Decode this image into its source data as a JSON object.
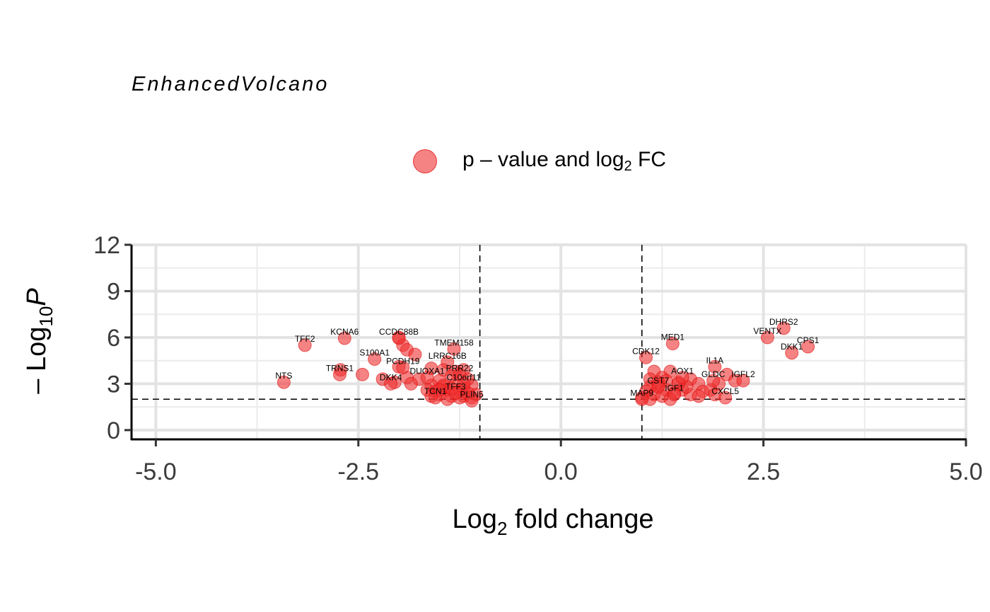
{
  "chart_data": {
    "type": "scatter",
    "subtitle": "EnhancedVolcano",
    "legend": {
      "label_prefix": "p – value and log",
      "label_sub": "2",
      "label_suffix": " FC",
      "color": "#ee3030",
      "position": "top"
    },
    "xlabel_main": "Log",
    "xlabel_sub": "2",
    "xlabel_rest": " fold change",
    "ylabel_prefix": "– Log",
    "ylabel_sub": "10",
    "ylabel_italic": "P",
    "xlim": [
      -5.3,
      5.0
    ],
    "ylim": [
      -0.6,
      12.0
    ],
    "xticks": [
      -5.0,
      -2.5,
      0.0,
      2.5,
      5.0
    ],
    "xtick_labels": [
      "-5.0",
      "-2.5",
      "0.0",
      "2.5",
      "5.0"
    ],
    "yticks": [
      0,
      3,
      6,
      9,
      12
    ],
    "ytick_labels": [
      "0",
      "3",
      "6",
      "9",
      "12"
    ],
    "fc_cutoff": 1.0,
    "p_cutoff_log": 2.0,
    "grid": true,
    "labeled_points": [
      {
        "gene": "TFF2",
        "x": -3.16,
        "y": 5.5
      },
      {
        "gene": "KCNA6",
        "x": -2.67,
        "y": 5.95
      },
      {
        "gene": "CCDC88B",
        "x": -2.0,
        "y": 5.95
      },
      {
        "gene": "TMEM158",
        "x": -1.32,
        "y": 5.25
      },
      {
        "gene": "S100A1",
        "x": -2.3,
        "y": 4.6
      },
      {
        "gene": "LRRC16B",
        "x": -1.4,
        "y": 4.4
      },
      {
        "gene": "PCDH19",
        "x": -1.95,
        "y": 4.05
      },
      {
        "gene": "TRNS1",
        "x": -2.73,
        "y": 3.6
      },
      {
        "gene": "PRR22",
        "x": -1.25,
        "y": 3.6
      },
      {
        "gene": "DUOXA1",
        "x": -1.65,
        "y": 3.4
      },
      {
        "gene": "DKK4",
        "x": -2.1,
        "y": 3.0
      },
      {
        "gene": "C10orf11",
        "x": -1.2,
        "y": 3.0
      },
      {
        "gene": "NTS",
        "x": -3.42,
        "y": 3.1
      },
      {
        "gene": "TFF3",
        "x": -1.3,
        "y": 2.4
      },
      {
        "gene": "TCN1",
        "x": -1.55,
        "y": 2.1
      },
      {
        "gene": "PLIN5",
        "x": -1.1,
        "y": 1.9
      },
      {
        "gene": "MED1",
        "x": 1.38,
        "y": 5.6
      },
      {
        "gene": "CDK12",
        "x": 1.05,
        "y": 4.7
      },
      {
        "gene": "IL1A",
        "x": 1.9,
        "y": 4.1
      },
      {
        "gene": "AOX1",
        "x": 1.5,
        "y": 3.4
      },
      {
        "gene": "GLDC",
        "x": 1.88,
        "y": 3.2
      },
      {
        "gene": "IGFL2",
        "x": 2.25,
        "y": 3.2
      },
      {
        "gene": "CST7",
        "x": 1.2,
        "y": 2.8
      },
      {
        "gene": "IGF1",
        "x": 1.4,
        "y": 2.3
      },
      {
        "gene": "MAP9",
        "x": 1.0,
        "y": 2.0
      },
      {
        "gene": "CXCL5",
        "x": 2.03,
        "y": 2.1
      },
      {
        "gene": "DHRS2",
        "x": 2.75,
        "y": 6.6
      },
      {
        "gene": "VENTX",
        "x": 2.55,
        "y": 6.0
      },
      {
        "gene": "CPS1",
        "x": 3.05,
        "y": 5.4
      },
      {
        "gene": "DKK1",
        "x": 2.85,
        "y": 5.0
      }
    ],
    "other_points": [
      [
        -2.0,
        6.0
      ],
      [
        -1.95,
        5.5
      ],
      [
        -1.9,
        5.2
      ],
      [
        -1.8,
        4.9
      ],
      [
        -2.0,
        4.1
      ],
      [
        -1.6,
        4.0
      ],
      [
        -1.45,
        3.9
      ],
      [
        -1.3,
        3.8
      ],
      [
        -1.2,
        3.9
      ],
      [
        -2.45,
        3.6
      ],
      [
        -2.72,
        3.9
      ],
      [
        -2.2,
        3.3
      ],
      [
        -1.9,
        3.4
      ],
      [
        -1.75,
        3.3
      ],
      [
        -1.5,
        3.2
      ],
      [
        -1.35,
        3.5
      ],
      [
        -1.15,
        3.3
      ],
      [
        -2.05,
        3.1
      ],
      [
        -1.85,
        3.0
      ],
      [
        -1.6,
        2.9
      ],
      [
        -1.45,
        2.8
      ],
      [
        -1.3,
        3.0
      ],
      [
        -1.2,
        2.7
      ],
      [
        -1.1,
        2.9
      ],
      [
        -1.65,
        2.6
      ],
      [
        -1.55,
        2.5
      ],
      [
        -1.4,
        2.6
      ],
      [
        -1.25,
        2.5
      ],
      [
        -1.5,
        2.3
      ],
      [
        -1.35,
        2.2
      ],
      [
        -1.2,
        2.2
      ],
      [
        -1.05,
        2.3
      ],
      [
        -1.6,
        2.2
      ],
      [
        -1.4,
        2.0
      ],
      [
        -1.25,
        2.1
      ],
      [
        -1.15,
        2.4
      ],
      [
        -1.45,
        2.9
      ],
      [
        -1.1,
        2.1
      ],
      [
        -1.35,
        2.7
      ],
      [
        -1.5,
        2.6
      ],
      [
        1.15,
        3.8
      ],
      [
        1.35,
        3.8
      ],
      [
        1.1,
        3.3
      ],
      [
        1.25,
        3.4
      ],
      [
        1.3,
        3.2
      ],
      [
        1.6,
        3.3
      ],
      [
        1.45,
        3.1
      ],
      [
        1.7,
        3.0
      ],
      [
        2.05,
        3.6
      ],
      [
        1.95,
        3.0
      ],
      [
        2.15,
        3.2
      ],
      [
        1.2,
        2.9
      ],
      [
        1.1,
        2.8
      ],
      [
        1.3,
        2.6
      ],
      [
        1.5,
        2.6
      ],
      [
        1.75,
        2.5
      ],
      [
        1.05,
        2.5
      ],
      [
        1.15,
        2.3
      ],
      [
        1.25,
        2.2
      ],
      [
        1.4,
        2.4
      ],
      [
        1.6,
        2.3
      ],
      [
        1.85,
        2.6
      ],
      [
        1.2,
        3.1
      ],
      [
        1.55,
        2.8
      ],
      [
        1.0,
        2.1
      ],
      [
        1.1,
        2.0
      ],
      [
        1.35,
        2.0
      ],
      [
        1.7,
        2.2
      ],
      [
        1.9,
        2.3
      ],
      [
        1.45,
        3.0
      ]
    ]
  }
}
